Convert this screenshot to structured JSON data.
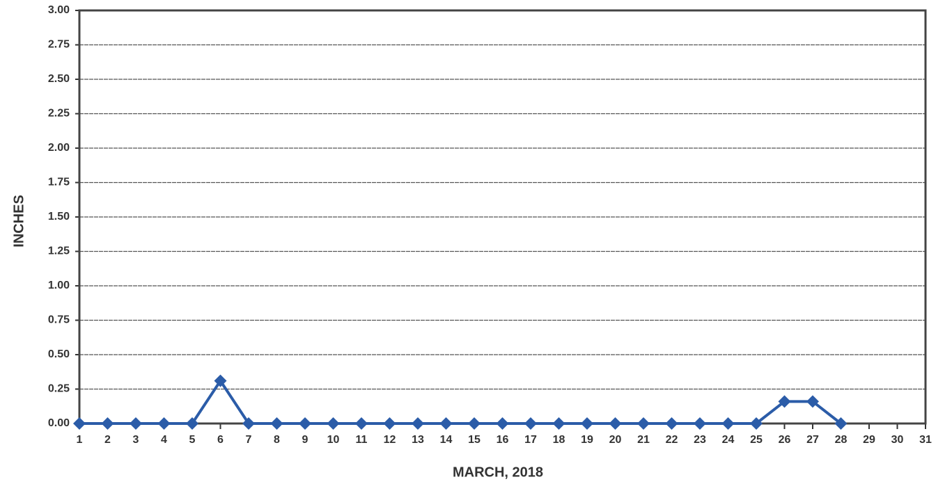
{
  "chart_data": {
    "type": "line",
    "x_label": "MARCH, 2018",
    "y_label": "INCHES",
    "x": [
      1,
      2,
      3,
      4,
      5,
      6,
      7,
      8,
      9,
      10,
      11,
      12,
      13,
      14,
      15,
      16,
      17,
      18,
      19,
      20,
      21,
      22,
      23,
      24,
      25,
      26,
      27,
      28
    ],
    "series": [
      {
        "color": "#2b5ca8",
        "values": [
          0,
          0,
          0,
          0,
          0,
          0.31,
          0,
          0,
          0,
          0,
          0,
          0,
          0,
          0,
          0,
          0,
          0,
          0,
          0,
          0,
          0,
          0,
          0,
          0,
          0,
          0.16,
          0.16,
          0
        ]
      }
    ],
    "xlim": [
      1,
      31
    ],
    "xticks": [
      1,
      2,
      3,
      4,
      5,
      6,
      7,
      8,
      9,
      10,
      11,
      12,
      13,
      14,
      15,
      16,
      17,
      18,
      19,
      20,
      21,
      22,
      23,
      24,
      25,
      26,
      27,
      28,
      29,
      30,
      31
    ],
    "ylim": [
      0,
      3
    ],
    "yticks": [
      {
        "value": 0,
        "label": "0.00"
      },
      {
        "value": 0.25,
        "label": "0.25"
      },
      {
        "value": 0.5,
        "label": "0.50"
      },
      {
        "value": 0.75,
        "label": "0.75"
      },
      {
        "value": 1,
        "label": "1.00"
      },
      {
        "value": 1.25,
        "label": "1.25"
      },
      {
        "value": 1.5,
        "label": "1.50"
      },
      {
        "value": 1.75,
        "label": "1.75"
      },
      {
        "value": 2,
        "label": "2.00"
      },
      {
        "value": 2.25,
        "label": "2.25"
      },
      {
        "value": 2.5,
        "label": "2.50"
      },
      {
        "value": 2.75,
        "label": "2.75"
      },
      {
        "value": 3,
        "label": "3.00"
      }
    ],
    "grid": true
  }
}
